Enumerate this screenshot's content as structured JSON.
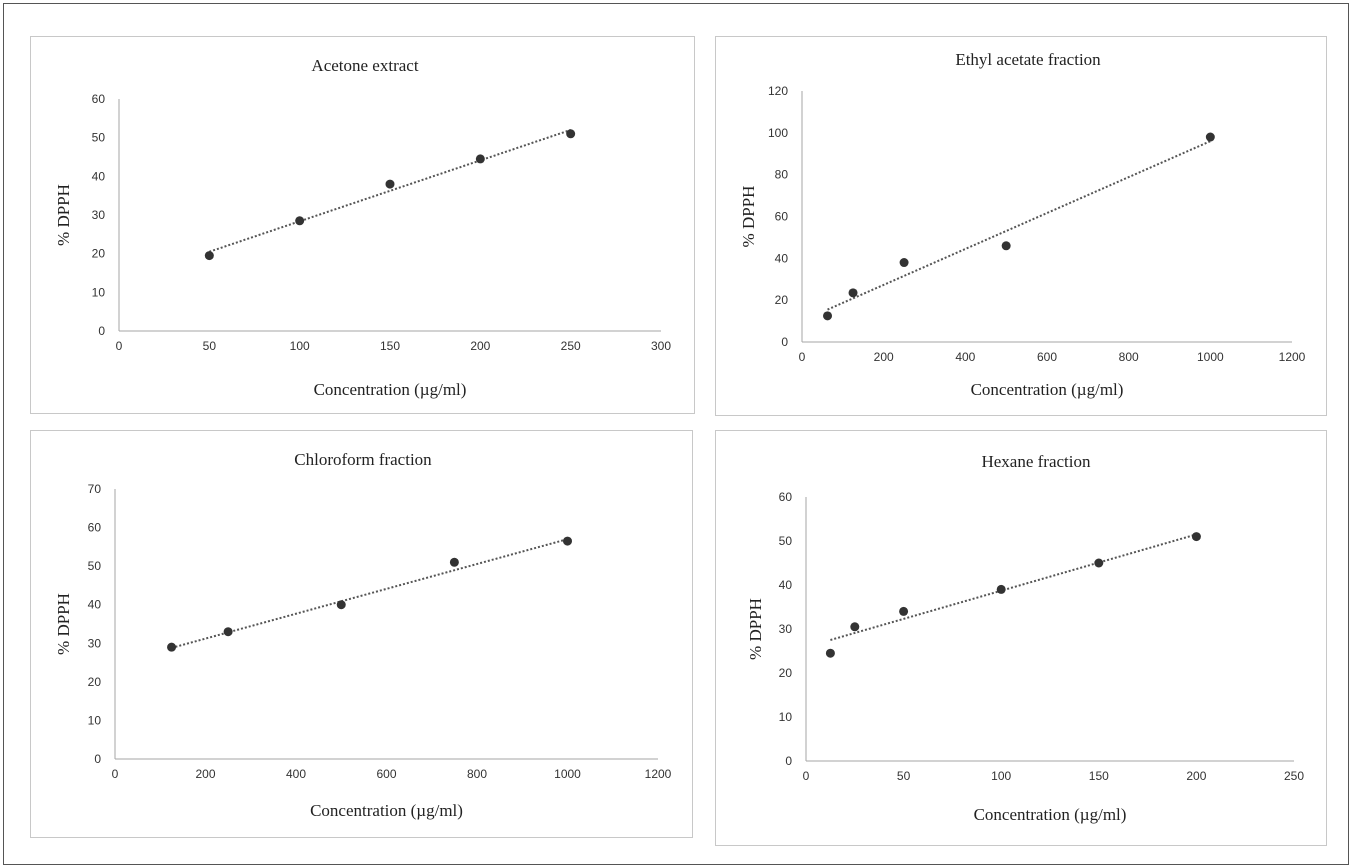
{
  "chart_data": [
    {
      "type": "scatter",
      "title": "Acetone extract",
      "xlabel": "Concentration  (µg/ml)",
      "ylabel": "% DPPH",
      "xlim": [
        0,
        300
      ],
      "xticks": [
        0,
        50,
        100,
        150,
        200,
        250,
        300
      ],
      "ylim": [
        0,
        60
      ],
      "yticks": [
        0,
        10,
        20,
        30,
        40,
        50,
        60
      ],
      "x": [
        50,
        100,
        150,
        200,
        250
      ],
      "y": [
        19.5,
        28.5,
        38,
        44.5,
        51
      ],
      "trendline": {
        "type": "linear",
        "style": "dotted",
        "x": [
          50,
          250
        ],
        "y": [
          20.5,
          52
        ]
      },
      "marker_color": "#333333",
      "grid": false,
      "legend": "none"
    },
    {
      "type": "scatter",
      "title": "Ethyl  acetate fraction",
      "xlabel": "Concentration  (µg/ml)",
      "ylabel": "% DPPH",
      "xlim": [
        0,
        1200
      ],
      "xticks": [
        0,
        200,
        400,
        600,
        800,
        1000,
        1200
      ],
      "ylim": [
        0,
        120
      ],
      "yticks": [
        0,
        20,
        40,
        60,
        80,
        100,
        120
      ],
      "x": [
        62.5,
        125,
        250,
        500,
        1000
      ],
      "y": [
        12.5,
        23.5,
        38,
        46,
        98
      ],
      "trendline": {
        "type": "linear",
        "style": "dotted",
        "x": [
          62.5,
          1000
        ],
        "y": [
          15.5,
          96
        ]
      },
      "marker_color": "#333333",
      "grid": false,
      "legend": "none"
    },
    {
      "type": "scatter",
      "title": "Chloroform  fraction",
      "xlabel": "Concentration  (µg/ml)",
      "ylabel": "% DPPH",
      "xlim": [
        0,
        1200
      ],
      "xticks": [
        0,
        200,
        400,
        600,
        800,
        1000,
        1200
      ],
      "ylim": [
        0,
        70
      ],
      "yticks": [
        0,
        10,
        20,
        30,
        40,
        50,
        60,
        70
      ],
      "x": [
        125,
        250,
        500,
        750,
        1000
      ],
      "y": [
        29,
        33,
        40,
        51,
        56.5
      ],
      "trendline": {
        "type": "linear",
        "style": "dotted",
        "x": [
          125,
          1000
        ],
        "y": [
          28.8,
          57
        ]
      },
      "marker_color": "#333333",
      "grid": false,
      "legend": "none"
    },
    {
      "type": "scatter",
      "title": "Hexane  fraction",
      "xlabel": "Concentration  (µg/ml)",
      "ylabel": "% DPPH",
      "xlim": [
        0,
        250
      ],
      "xticks": [
        0,
        50,
        100,
        150,
        200,
        250
      ],
      "ylim": [
        0,
        60
      ],
      "yticks": [
        0,
        10,
        20,
        30,
        40,
        50,
        60
      ],
      "x": [
        12.5,
        25,
        50,
        100,
        150,
        200
      ],
      "y": [
        24.5,
        30.5,
        34,
        39,
        45,
        51
      ],
      "trendline": {
        "type": "linear",
        "style": "dotted",
        "x": [
          12.5,
          200
        ],
        "y": [
          27.5,
          51.5
        ]
      },
      "marker_color": "#333333",
      "grid": false,
      "legend": "none"
    }
  ]
}
